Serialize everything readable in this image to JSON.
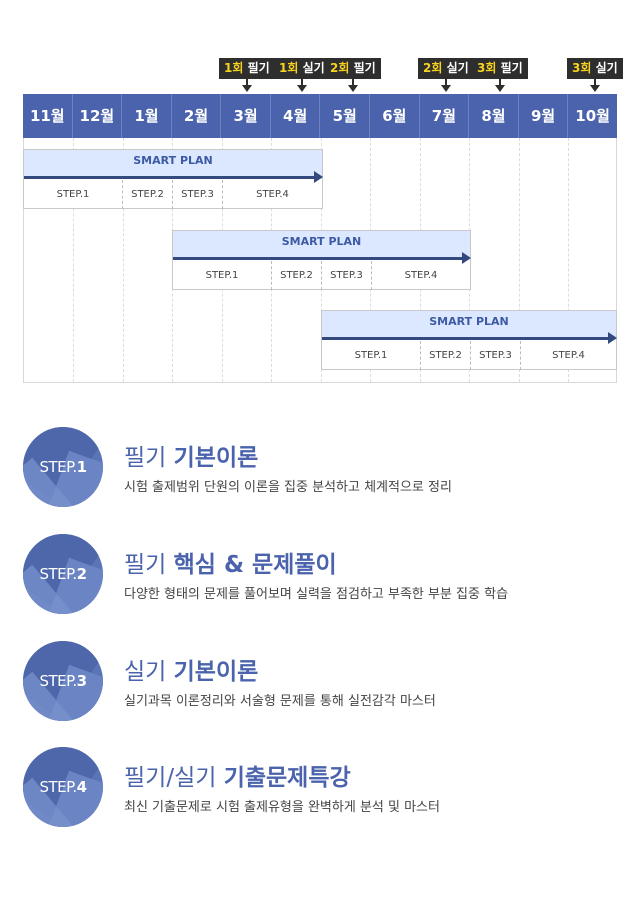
{
  "exam_tags": [
    {
      "num": "1회",
      "kind": "필기"
    },
    {
      "num": "1회",
      "kind": "실기"
    },
    {
      "num": "2회",
      "kind": "필기"
    },
    {
      "num": "2회",
      "kind": "실기"
    },
    {
      "num": "3회",
      "kind": "필기"
    },
    {
      "num": "3회",
      "kind": "실기"
    }
  ],
  "months": [
    "11월",
    "12월",
    "1월",
    "2월",
    "3월",
    "4월",
    "5월",
    "6월",
    "7월",
    "8월",
    "9월",
    "10월"
  ],
  "plans": [
    {
      "title": "SMART PLAN",
      "steps": [
        "STEP.1",
        "STEP.2",
        "STEP.3",
        "STEP.4"
      ]
    },
    {
      "title": "SMART PLAN",
      "steps": [
        "STEP.1",
        "STEP.2",
        "STEP.3",
        "STEP.4"
      ]
    },
    {
      "title": "SMART PLAN",
      "steps": [
        "STEP.1",
        "STEP.2",
        "STEP.3",
        "STEP.4"
      ]
    }
  ],
  "descriptions": [
    {
      "step_prefix": "STEP.",
      "step_num": "1",
      "title_light": "필기 ",
      "title_bold": "기본이론",
      "desc": "시험 출제범위 단원의 이론을 집중 분석하고 체계적으로 정리"
    },
    {
      "step_prefix": "STEP.",
      "step_num": "2",
      "title_light": "필기 ",
      "title_bold": "핵심 & 문제풀이",
      "desc": "다양한 형태의 문제를 풀어보며 실력을 점검하고 부족한 부분 집중 학습"
    },
    {
      "step_prefix": "STEP.",
      "step_num": "3",
      "title_light": "실기 ",
      "title_bold": "기본이론",
      "desc": "실기과목 이론정리와 서술형 문제를 통해 실전감각 마스터"
    },
    {
      "step_prefix": "STEP.",
      "step_num": "4",
      "title_light": "필기/실기 ",
      "title_bold": "기출문제특강",
      "desc": "최신 기출문제로 시험 출제유형을 완벽하게 분석 및 마스터"
    }
  ]
}
